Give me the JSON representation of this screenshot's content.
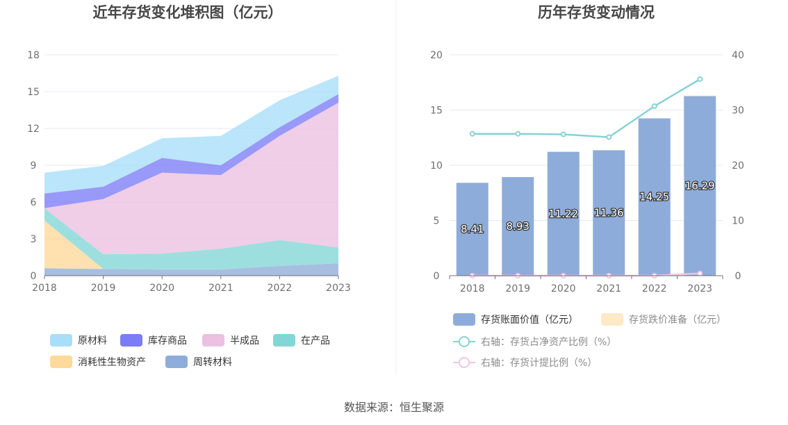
{
  "source": "数据来源：恒生聚源",
  "chart_data": [
    {
      "type": "area",
      "stacked": true,
      "title": "近年存货变化堆积图（亿元）",
      "x": [
        "2018",
        "2019",
        "2020",
        "2021",
        "2022",
        "2023"
      ],
      "ylim": [
        0,
        18
      ],
      "yticks": [
        0,
        3,
        6,
        9,
        12,
        15,
        18
      ],
      "grid": true,
      "legend_position": "bottom",
      "series": [
        {
          "name": "周转材料",
          "color": "#8eacd9",
          "values": [
            0.6,
            0.55,
            0.5,
            0.5,
            0.8,
            1.0
          ]
        },
        {
          "name": "消耗性生物资产",
          "color": "#ffd99a",
          "values": [
            3.9,
            0.0,
            0.0,
            0.0,
            0.0,
            0.0
          ]
        },
        {
          "name": "在产品",
          "color": "#82d6d6",
          "values": [
            1.0,
            1.2,
            1.3,
            1.7,
            2.1,
            1.3
          ]
        },
        {
          "name": "半成品",
          "color": "#ecc0e0",
          "values": [
            0.0,
            4.5,
            6.6,
            6.0,
            8.5,
            11.8
          ]
        },
        {
          "name": "库存商品",
          "color": "#7b7cf6",
          "values": [
            1.2,
            1.0,
            1.2,
            0.8,
            0.7,
            0.7
          ]
        },
        {
          "name": "原材料",
          "color": "#a8def8",
          "values": [
            1.7,
            1.7,
            1.6,
            2.4,
            2.2,
            1.5
          ]
        }
      ],
      "legend_order": [
        "原材料",
        "库存商品",
        "半成品",
        "在产品",
        "消耗性生物资产",
        "周转材料"
      ]
    },
    {
      "type": "bar",
      "title": "历年存货变动情况",
      "categories": [
        "2018",
        "2019",
        "2020",
        "2021",
        "2022",
        "2023"
      ],
      "ylim": [
        0,
        20
      ],
      "yticks": [
        0,
        5,
        10,
        15,
        20
      ],
      "y2lim": [
        0,
        40
      ],
      "y2ticks": [
        0,
        10,
        20,
        30,
        40
      ],
      "grid": true,
      "legend_position": "bottom",
      "series": [
        {
          "name": "存货账面价值（亿元）",
          "type": "bar",
          "color": "#8eacd9",
          "values": [
            8.41,
            8.93,
            11.22,
            11.36,
            14.25,
            16.29
          ],
          "labels": [
            "8.41",
            "8.93",
            "11.22",
            "11.36",
            "14.25",
            "16.29"
          ]
        },
        {
          "name": "存货跌价准备（亿元）",
          "type": "bar",
          "color": "#ffe9c6",
          "values": [
            0.0,
            0.0,
            0.0,
            0.0,
            0.0,
            0.03
          ]
        },
        {
          "name": "右轴：存货占净资产比例（%）",
          "type": "line",
          "axis": "right",
          "color": "#86d2d6",
          "values": [
            25.7,
            25.7,
            25.6,
            25.1,
            30.7,
            35.6
          ]
        },
        {
          "name": "右轴：存货计提比例（%）",
          "type": "line",
          "axis": "right",
          "color": "#efc6e2",
          "values": [
            0.0,
            0.0,
            0.0,
            0.0,
            0.0,
            0.4
          ]
        }
      ]
    }
  ]
}
